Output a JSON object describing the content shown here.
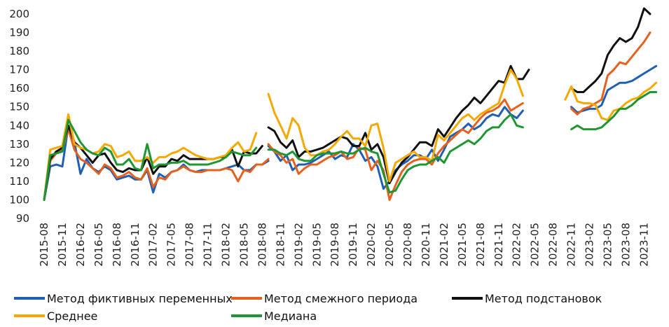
{
  "chart_data": {
    "type": "line",
    "ylim": [
      90,
      200
    ],
    "yticks": [
      90,
      100,
      110,
      120,
      130,
      140,
      150,
      160,
      170,
      180,
      190,
      200
    ],
    "x_start": "2015-08",
    "n_months": 102,
    "xtick_labels": [
      "2015-08",
      "2015-11",
      "2016-02",
      "2016-05",
      "2016-08",
      "2016-11",
      "2017-02",
      "2017-05",
      "2017-08",
      "2017-11",
      "2018-02",
      "2018-05",
      "2018-08",
      "2018-11",
      "2019-02",
      "2019-05",
      "2019-08",
      "2019-11",
      "2020-02",
      "2020-05",
      "2020-08",
      "2020-11",
      "2021-02",
      "2021-05",
      "2021-08",
      "2021-11",
      "2022-02",
      "2022-05",
      "2022-08",
      "2022-11",
      "2023-02",
      "2023-05",
      "2023-08",
      "2023-11"
    ],
    "series": [
      {
        "name": "Метод фиктивных переменных",
        "color": "#1f5fb4",
        "segments": [
          {
            "start": 0,
            "values": [
              100,
              118,
              119,
              118,
              140,
              131,
              114,
              122,
              117,
              115,
              118,
              116,
              111,
              112,
              113,
              111,
              111,
              116,
              104,
              114,
              112,
              115,
              116,
              119,
              116,
              115,
              116,
              116,
              116,
              116,
              117,
              118,
              119,
              116,
              116,
              119,
              119,
              121
            ]
          },
          {
            "start": 37,
            "values": [
              129,
              126,
              121,
              124,
              116,
              119,
              119,
              120,
              122,
              124,
              126,
              122,
              124,
              123,
              130,
              127,
              121,
              123,
              118,
              106,
              110,
              116,
              119,
              121,
              124,
              124,
              122,
              127,
              121,
              127,
              134,
              136,
              138,
              141,
              138,
              140,
              144,
              146,
              145,
              150,
              146,
              144,
              148
            ]
          },
          {
            "start": 87,
            "values": [
              150,
              147,
              148,
              149,
              149,
              151,
              159,
              161,
              163,
              163,
              164,
              166,
              168,
              170,
              172
            ]
          }
        ]
      },
      {
        "name": "Метод смежного периода",
        "color": "#e5621e",
        "segments": [
          {
            "start": 0,
            "values": [
              100,
              121,
              125,
              127,
              138,
              127,
              122,
              120,
              117,
              114,
              119,
              117,
              112,
              113,
              115,
              112,
              111,
              117,
              107,
              112,
              111,
              115,
              116,
              118,
              116,
              115,
              115,
              116,
              116,
              116,
              117,
              116,
              110,
              116,
              115,
              119,
              119,
              122
            ]
          },
          {
            "start": 37,
            "values": [
              130,
              126,
              124,
              120,
              122,
              114,
              117,
              119,
              119,
              121,
              123,
              124,
              126,
              122,
              123,
              128,
              127,
              116,
              121,
              116,
              100,
              108,
              115,
              119,
              121,
              122,
              122,
              119,
              125,
              129,
              132,
              135,
              138,
              136,
              140,
              144,
              147,
              148,
              150,
              154,
              148,
              150,
              152
            ]
          },
          {
            "start": 87,
            "values": [
              149,
              146,
              149,
              150,
              152,
              154,
              167,
              170,
              174,
              173,
              177,
              181,
              185,
              190
            ]
          }
        ]
      },
      {
        "name": "Метод подстановок",
        "color": "#111111",
        "segments": [
          {
            "start": 0,
            "values": [
              100,
              122,
              126,
              128,
              140,
              131,
              128,
              124,
              120,
              124,
              125,
              120,
              116,
              115,
              117,
              116,
              116,
              123,
              114,
              118,
              118,
              122,
              121,
              124,
              122,
              122,
              122,
              122,
              122,
              123,
              123,
              127,
              118,
              126,
              125,
              125,
              129
            ]
          },
          {
            "start": 37,
            "values": [
              139,
              137,
              131,
              128,
              132,
              123,
              126,
              126,
              127,
              128,
              130,
              132,
              134,
              133,
              129,
              129,
              136,
              127,
              130,
              123,
              109,
              115,
              120,
              123,
              127,
              131,
              131,
              129,
              138,
              134,
              139,
              144,
              148,
              151,
              155,
              152,
              156,
              160,
              164,
              163,
              172,
              165,
              165,
              170
            ]
          },
          {
            "start": 87,
            "values": [
              160,
              158,
              158,
              161,
              164,
              168,
              178,
              183,
              187,
              185,
              187,
              193,
              203,
              200
            ]
          }
        ]
      },
      {
        "name": "Среднее",
        "color": "#f5a800",
        "segments": [
          {
            "start": 0,
            "values": [
              100,
              127,
              128,
              129,
              146,
              130,
              128,
              127,
              125,
              126,
              130,
              129,
              123,
              124,
              126,
              121,
              121,
              123,
              120,
              123,
              123,
              125,
              126,
              128,
              126,
              124,
              123,
              122,
              122,
              123,
              124,
              128,
              131,
              126,
              127,
              136
            ]
          },
          {
            "start": 37,
            "values": [
              157,
              147,
              140,
              133,
              144,
              140,
              128,
              124,
              124,
              126,
              127,
              130,
              134,
              137,
              133,
              133,
              129,
              140,
              141,
              128,
              110,
              120,
              122,
              124,
              126,
              123,
              123,
              121,
              135,
              132,
              136,
              140,
              144,
              146,
              143,
              146,
              148,
              150,
              152,
              162,
              170,
              165,
              156
            ]
          },
          {
            "start": 86,
            "values": [
              154,
              161,
              153,
              152,
              152,
              151,
              144,
              143,
              148,
              149,
              152,
              154,
              155,
              158,
              160,
              163
            ]
          }
        ]
      },
      {
        "name": "Медиана",
        "color": "#1e9632",
        "segments": [
          {
            "start": 0,
            "values": [
              100,
              124,
              125,
              126,
              143,
              137,
              131,
              127,
              125,
              124,
              128,
              126,
              119,
              119,
              122,
              117,
              116,
              130,
              117,
              119,
              119,
              120,
              120,
              121,
              119,
              119,
              119,
              119,
              120,
              121,
              123,
              126,
              125,
              124,
              124,
              128
            ]
          },
          {
            "start": 37,
            "values": [
              127,
              127,
              125,
              124,
              126,
              122,
              121,
              121,
              124,
              125,
              125,
              125,
              126,
              125,
              125,
              127,
              128,
              126,
              125,
              114,
              104,
              105,
              111,
              116,
              118,
              119,
              119,
              121,
              123,
              120,
              126,
              128,
              130,
              132,
              130,
              133,
              137,
              139,
              139,
              143,
              146,
              140,
              139
            ]
          },
          {
            "start": 87,
            "values": [
              138,
              140,
              138,
              138,
              138,
              139,
              142,
              145,
              149,
              149,
              151,
              154,
              156,
              158,
              158
            ]
          }
        ]
      }
    ]
  }
}
